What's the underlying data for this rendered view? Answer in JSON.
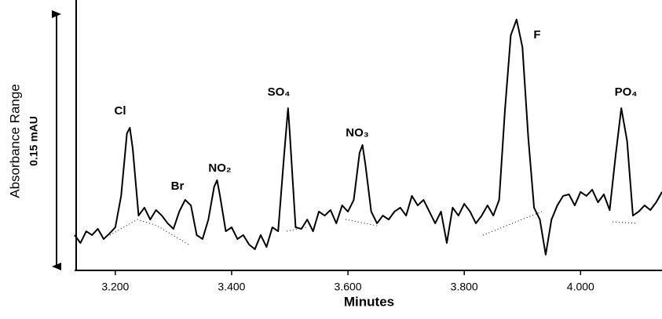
{
  "chart_data": {
    "type": "line",
    "x_label": "Minutes",
    "y_label": "Absorbance Range",
    "y_range_label": "0.15 mAU",
    "annotations": [
      "Cl",
      "Br",
      "NO₂",
      "SO₄",
      "NO₃",
      "F",
      "PO₄"
    ],
    "color": "#000000",
    "xlim": [
      3.13,
      4.14
    ],
    "ylim": [
      0,
      0.15
    ],
    "xticks": [
      {
        "value": 3.2,
        "label": "3.200"
      },
      {
        "value": 3.4,
        "label": "3.400"
      },
      {
        "value": 3.6,
        "label": "3.600"
      },
      {
        "value": 3.8,
        "label": "3.800"
      },
      {
        "value": 4.0,
        "label": "4.000"
      }
    ],
    "x": [
      3.13,
      3.14,
      3.15,
      3.16,
      3.17,
      3.18,
      3.19,
      3.2,
      3.21,
      3.22,
      3.225,
      3.23,
      3.24,
      3.25,
      3.26,
      3.27,
      3.28,
      3.29,
      3.3,
      3.31,
      3.32,
      3.33,
      3.34,
      3.35,
      3.36,
      3.37,
      3.375,
      3.38,
      3.39,
      3.4,
      3.41,
      3.42,
      3.43,
      3.44,
      3.45,
      3.46,
      3.47,
      3.48,
      3.49,
      3.497,
      3.5,
      3.51,
      3.52,
      3.53,
      3.54,
      3.55,
      3.56,
      3.57,
      3.58,
      3.59,
      3.6,
      3.61,
      3.62,
      3.625,
      3.63,
      3.64,
      3.65,
      3.66,
      3.67,
      3.68,
      3.69,
      3.7,
      3.71,
      3.72,
      3.73,
      3.74,
      3.75,
      3.76,
      3.77,
      3.78,
      3.79,
      3.8,
      3.81,
      3.82,
      3.83,
      3.84,
      3.85,
      3.86,
      3.87,
      3.88,
      3.89,
      3.9,
      3.91,
      3.92,
      3.93,
      3.94,
      3.95,
      3.96,
      3.97,
      3.98,
      3.99,
      4.0,
      4.01,
      4.02,
      4.03,
      4.04,
      4.05,
      4.06,
      4.07,
      4.08,
      4.09,
      4.1,
      4.11,
      4.12,
      4.13,
      4.14
    ],
    "values": [
      0.0205,
      0.0159,
      0.0227,
      0.0205,
      0.0241,
      0.0182,
      0.0214,
      0.025,
      0.0432,
      0.0795,
      0.0827,
      0.0705,
      0.0318,
      0.0364,
      0.0295,
      0.035,
      0.0318,
      0.0273,
      0.0241,
      0.0341,
      0.0409,
      0.0377,
      0.0205,
      0.0182,
      0.0295,
      0.0486,
      0.0523,
      0.0432,
      0.0227,
      0.025,
      0.0182,
      0.0205,
      0.015,
      0.0123,
      0.0205,
      0.0136,
      0.025,
      0.0227,
      0.0659,
      0.0941,
      0.0795,
      0.025,
      0.0241,
      0.0295,
      0.0227,
      0.0341,
      0.0318,
      0.035,
      0.0273,
      0.0377,
      0.0341,
      0.0409,
      0.0682,
      0.0727,
      0.0614,
      0.0341,
      0.0273,
      0.0318,
      0.0295,
      0.0341,
      0.0364,
      0.0318,
      0.0432,
      0.0377,
      0.0409,
      0.0341,
      0.0273,
      0.0341,
      0.0159,
      0.0364,
      0.0318,
      0.0386,
      0.0341,
      0.0273,
      0.0318,
      0.0377,
      0.0318,
      0.0409,
      0.0932,
      0.1364,
      0.1455,
      0.1295,
      0.0773,
      0.0364,
      0.0295,
      0.0091,
      0.0295,
      0.0377,
      0.0432,
      0.0441,
      0.0377,
      0.0455,
      0.0432,
      0.0468,
      0.0395,
      0.0441,
      0.035,
      0.0659,
      0.0941,
      0.075,
      0.0318,
      0.0341,
      0.0377,
      0.035,
      0.0395,
      0.0455
    ]
  }
}
